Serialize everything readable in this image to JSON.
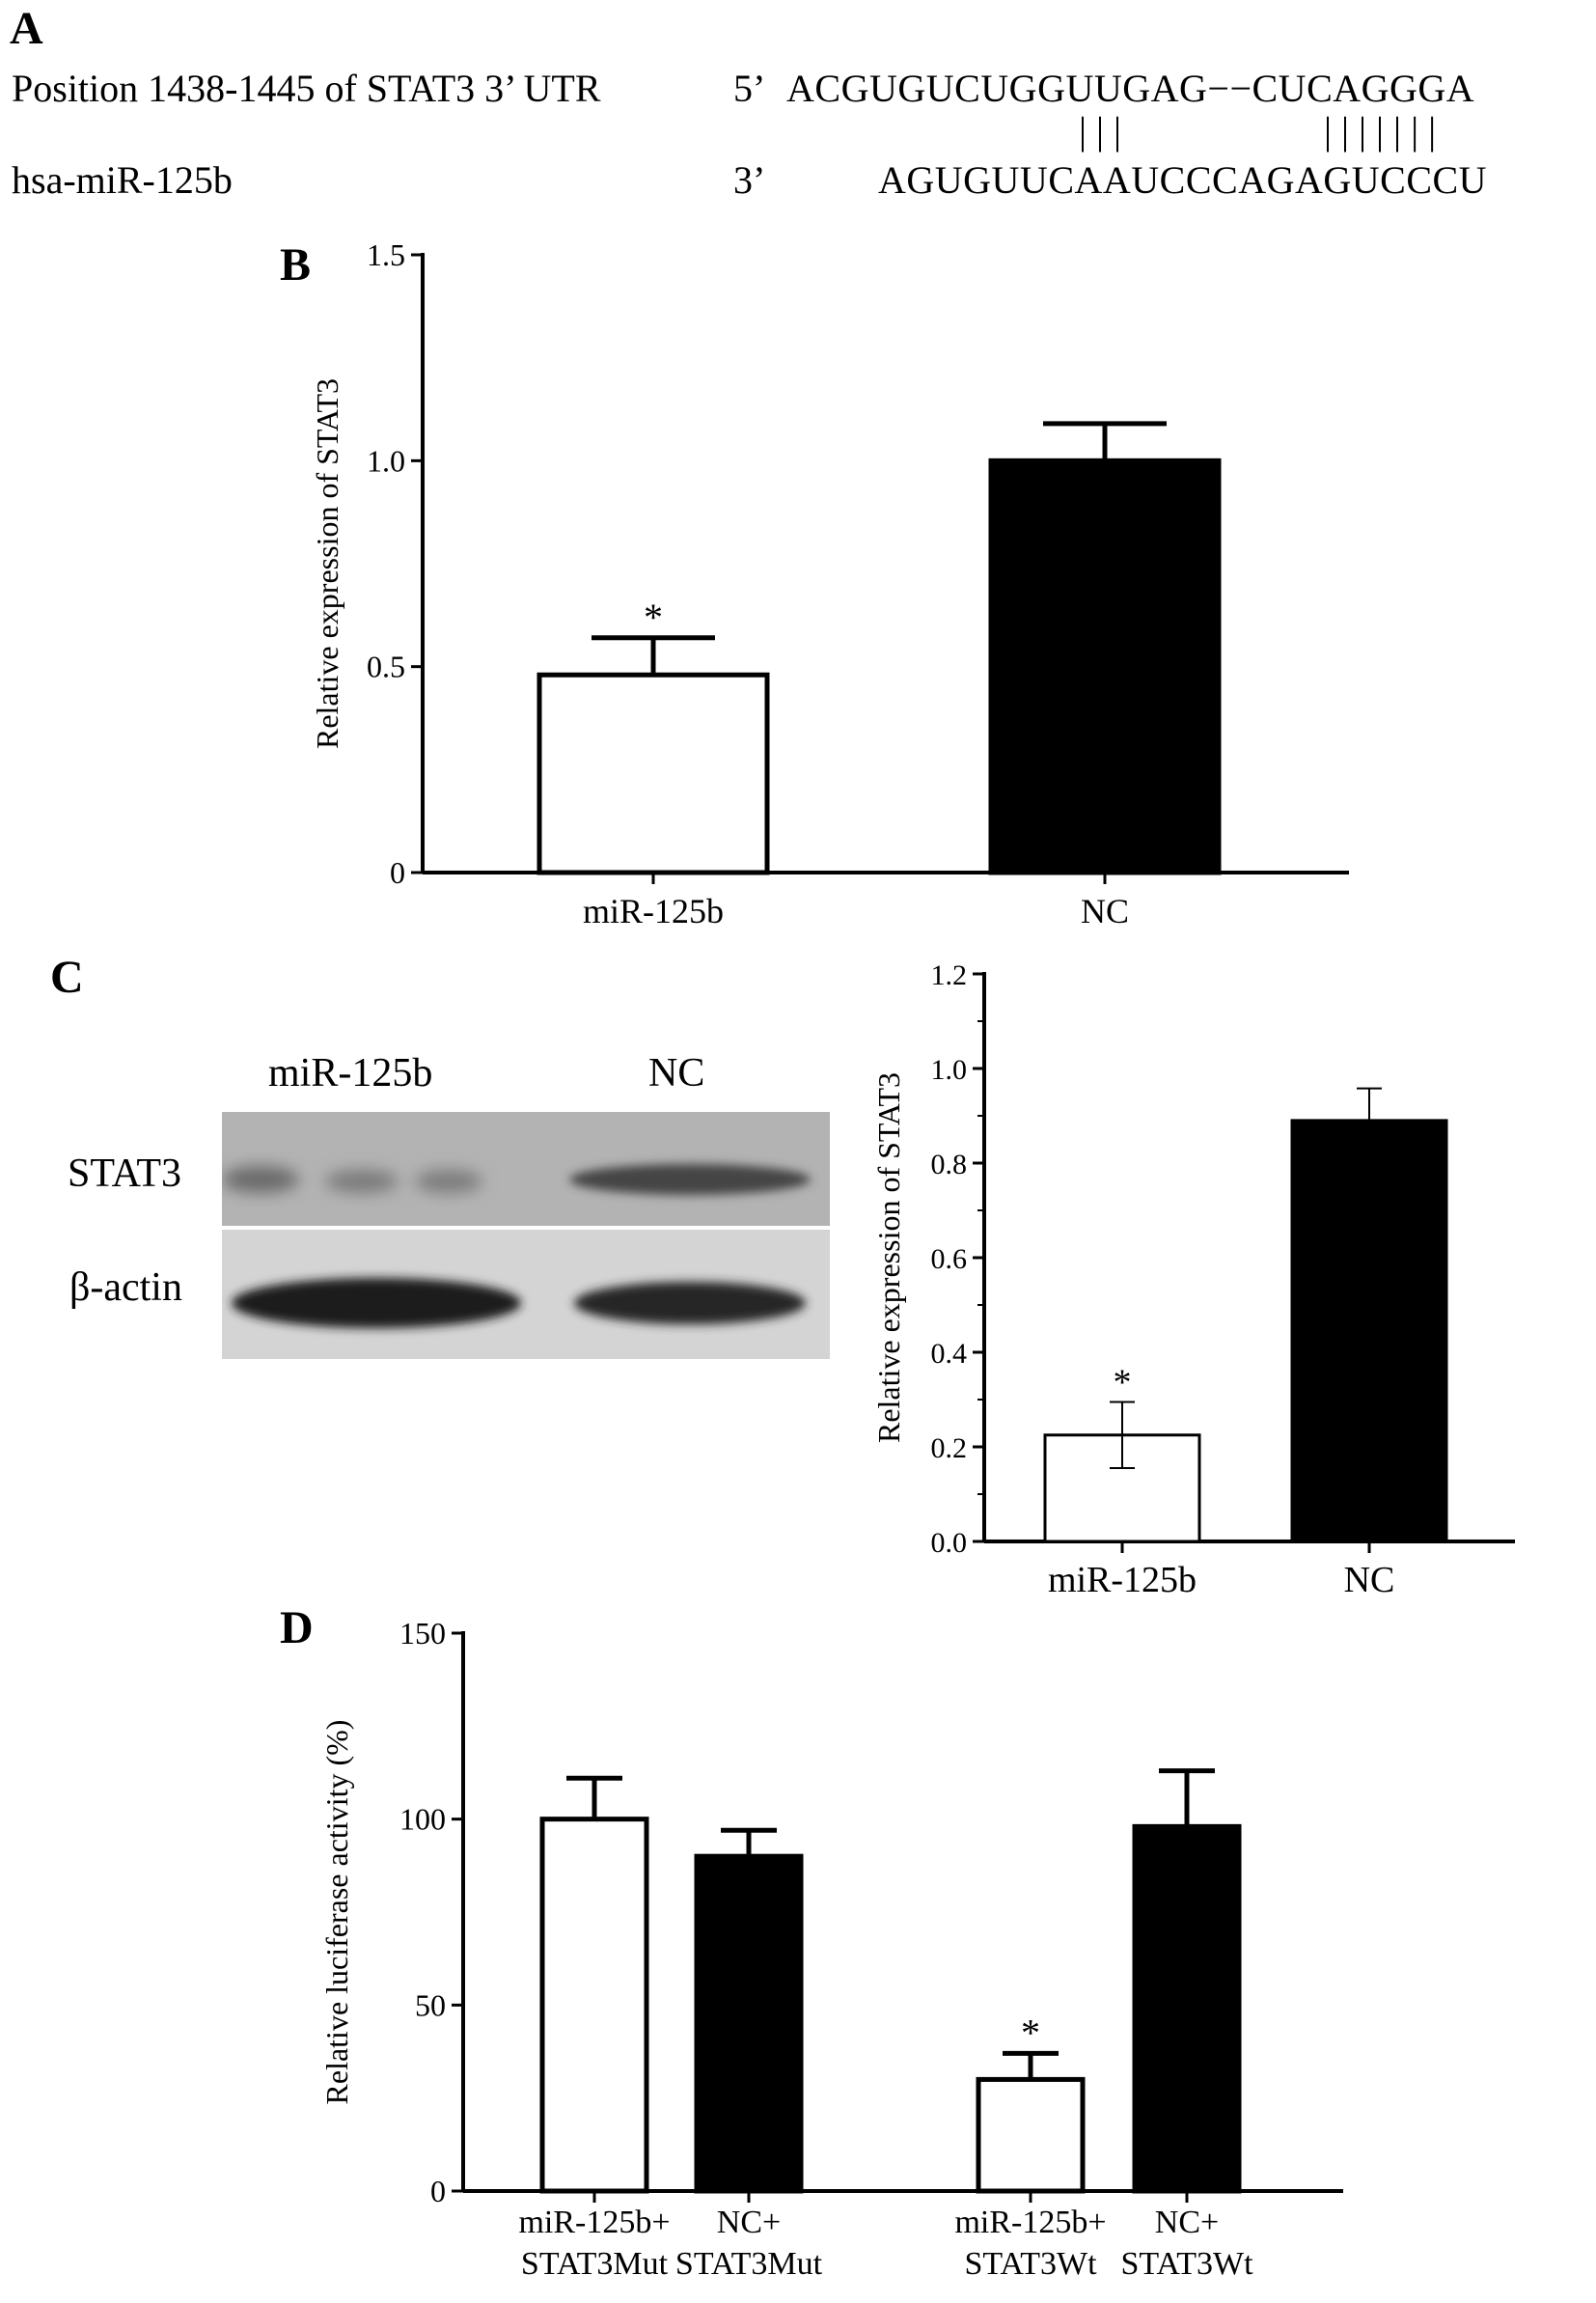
{
  "panel_a": {
    "letter": "A",
    "row1_label": "Position 1438-1445 of STAT3 3’ UTR",
    "row1_end": "5’",
    "row1_seq": "ACGUGUCUGGUUGAG−−CUCAGGGA",
    "pairs": "|||          |||||||",
    "row2_label": "hsa-miR-125b",
    "row2_end": "3’",
    "row2_seq": "AGUGUUCAAUCCCAGAGUCCCU"
  },
  "panel_c": {
    "letter": "C",
    "blot": {
      "lane_labels": [
        "miR-125b",
        "NC"
      ],
      "row_labels": [
        "STAT3",
        "β-actin"
      ]
    }
  },
  "chart_data": [
    {
      "panel": "B",
      "type": "bar",
      "categories": [
        "miR-125b",
        "NC"
      ],
      "values": [
        0.48,
        1.0
      ],
      "errors": [
        0.09,
        0.09
      ],
      "fills": [
        "#ffffff",
        "#000000"
      ],
      "significance": [
        "*",
        ""
      ],
      "ylabel": "Relative expression of STAT3",
      "xlabel": "",
      "ylim": [
        0,
        1.5
      ],
      "yticks": [
        "0",
        "0.5",
        "1.0",
        "1.5"
      ],
      "grid": false
    },
    {
      "panel": "C",
      "type": "bar",
      "categories": [
        "miR-125b",
        "NC"
      ],
      "values": [
        0.225,
        0.89
      ],
      "errors": [
        0.07,
        0.068
      ],
      "fills": [
        "#ffffff",
        "#000000"
      ],
      "significance": [
        "*",
        ""
      ],
      "ylabel": "Relative expression of STAT3",
      "xlabel": "",
      "ylim": [
        0,
        1.2
      ],
      "yticks": [
        "0.0",
        "0.2",
        "0.4",
        "0.6",
        "0.8",
        "1.0",
        "1.2"
      ],
      "grid": false
    },
    {
      "panel": "D",
      "type": "bar",
      "categories": [
        [
          "miR-125b+",
          "STAT3Mut"
        ],
        [
          "NC+",
          "STAT3Mut"
        ],
        [
          "miR-125b+",
          "STAT3Wt"
        ],
        [
          "NC+",
          "STAT3Wt"
        ]
      ],
      "values": [
        100,
        90,
        30,
        98
      ],
      "errors": [
        11,
        7,
        7,
        15
      ],
      "fills": [
        "#ffffff",
        "#000000",
        "#ffffff",
        "#000000"
      ],
      "significance": [
        "",
        "",
        "*",
        ""
      ],
      "ylabel": "Relative luciferase activity (%)",
      "xlabel": "",
      "ylim": [
        0,
        150
      ],
      "yticks": [
        "0",
        "50",
        "100",
        "150"
      ],
      "grid": false
    }
  ]
}
